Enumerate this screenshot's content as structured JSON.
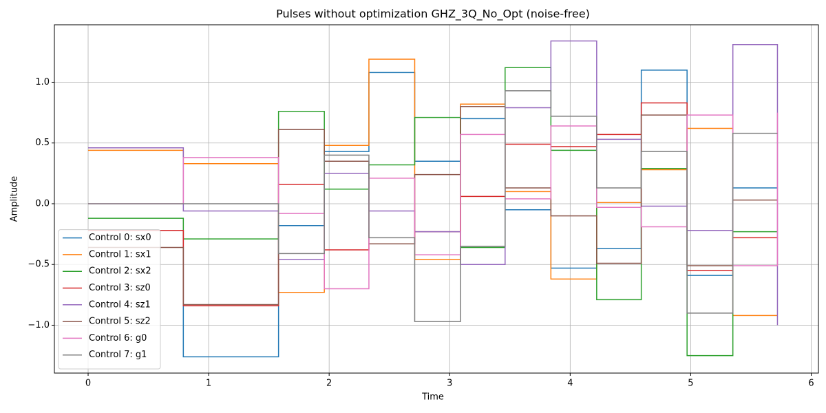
{
  "chart_data": {
    "type": "step",
    "title": "Pulses without optimization GHZ_3Q_No_Opt (noise-free)",
    "x_label": "Time",
    "y_label": "Amplitude",
    "x": [
      0,
      0.79,
      1.58,
      1.96,
      2.33,
      2.71,
      3.09,
      3.46,
      3.84,
      4.22,
      4.59,
      4.97,
      5.35,
      5.72
    ],
    "series": [
      {
        "name": "Control 0: sx0",
        "color": "#1f77b4",
        "values": [
          -0.22,
          -1.26,
          -0.18,
          0.43,
          1.08,
          0.35,
          0.7,
          -0.05,
          -0.53,
          -0.37,
          1.1,
          -0.59,
          0.13,
          0.13
        ]
      },
      {
        "name": "Control 1: sx1",
        "color": "#ff7f0e",
        "values": [
          0.44,
          0.33,
          -0.73,
          0.48,
          1.19,
          -0.46,
          0.82,
          0.1,
          -0.62,
          0.01,
          0.28,
          0.62,
          -0.92,
          -0.92
        ]
      },
      {
        "name": "Control 2: sx2",
        "color": "#2ca02c",
        "values": [
          -0.12,
          -0.29,
          0.76,
          0.12,
          0.32,
          0.71,
          -0.36,
          1.12,
          0.44,
          -0.79,
          0.29,
          -1.25,
          -0.23,
          -0.23
        ]
      },
      {
        "name": "Control 3: sz0",
        "color": "#d62728",
        "values": [
          -0.22,
          -0.84,
          0.16,
          -0.38,
          -0.33,
          -0.23,
          0.06,
          0.49,
          0.47,
          0.57,
          0.83,
          -0.55,
          -0.28,
          -0.28
        ]
      },
      {
        "name": "Control 4: sz1",
        "color": "#9467bd",
        "values": [
          0.46,
          -0.06,
          -0.46,
          0.25,
          -0.06,
          -0.23,
          -0.5,
          0.79,
          1.34,
          0.53,
          -0.02,
          -0.22,
          1.31,
          -1.0
        ]
      },
      {
        "name": "Control 5: sz2",
        "color": "#8c564b",
        "values": [
          -0.36,
          -0.83,
          0.61,
          0.35,
          -0.33,
          0.24,
          0.8,
          0.13,
          -0.1,
          -0.49,
          0.73,
          -0.51,
          0.03,
          0.03
        ]
      },
      {
        "name": "Control 6: g0",
        "color": "#e377c2",
        "values": [
          0,
          0.38,
          -0.08,
          -0.7,
          0.21,
          -0.42,
          0.57,
          0.04,
          0.64,
          -0.03,
          -0.19,
          0.73,
          -0.51,
          0.75
        ]
      },
      {
        "name": "Control 7: g1",
        "color": "#7f7f7f",
        "values": [
          0,
          0,
          -0.41,
          0.4,
          -0.28,
          -0.97,
          -0.35,
          0.93,
          0.72,
          0.13,
          0.43,
          -0.9,
          0.58,
          0.58
        ]
      }
    ],
    "xlim": [
      -0.28,
      6.06
    ],
    "ylim": [
      -1.394,
      1.473
    ],
    "xticks": [
      0,
      1,
      2,
      3,
      4,
      5,
      6
    ],
    "yticks": [
      {
        "value": -1,
        "label": "−1.0"
      },
      {
        "value": -0.5,
        "label": "−0.5"
      },
      {
        "value": 0,
        "label": "0.0"
      },
      0.5,
      {
        "value": 1,
        "label": "1.0"
      }
    ],
    "grid": true,
    "legend": "lower left"
  }
}
